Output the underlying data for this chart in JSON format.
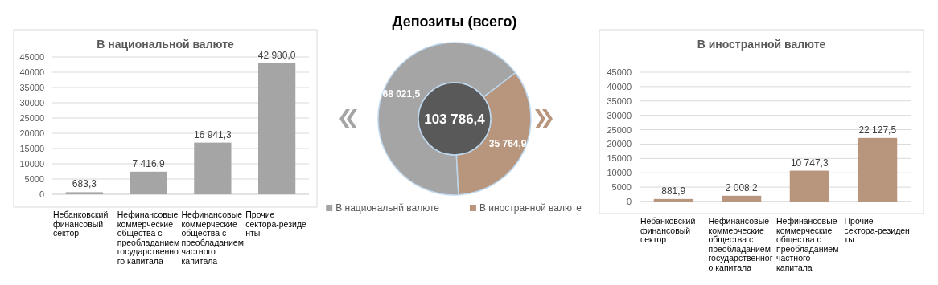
{
  "chart_data": [
    {
      "type": "bar",
      "title": "В национальной валюте",
      "categories": [
        "Небанковский финансовый сектор",
        "Нефинансовые коммерческие общества с преобладанием государственного капитала",
        "Нефинансовые коммерческие общества с преобладанием частного капитала",
        "Прочие сектора-резиденты"
      ],
      "values": [
        683.3,
        7416.9,
        16941.3,
        42980.0
      ],
      "value_labels": [
        "683,3",
        "7 416,9",
        "16 941,3",
        "42 980,0"
      ],
      "color": "#a5a5a5",
      "ylim": [
        0,
        45000
      ],
      "yticks": [
        0,
        5000,
        10000,
        15000,
        20000,
        25000,
        30000,
        35000,
        40000,
        45000
      ],
      "grid": "y"
    },
    {
      "type": "donut",
      "title": "Депозиты (всего)",
      "categories": [
        "В национальнй валюте",
        "В иностранной валюте"
      ],
      "values": [
        68021.5,
        35764.9
      ],
      "value_labels": [
        "68 021,5",
        "35 764,9"
      ],
      "colors": [
        "#a5a5a5",
        "#b8967e"
      ],
      "annotations": [
        "103 786,4"
      ],
      "legend": "bottom"
    },
    {
      "type": "bar",
      "title": "В иностранной валюте",
      "categories": [
        "Небанковский финансовый сектор",
        "Нефинансовые коммерческие общества с преобладанием государственного капитала",
        "Нефинансовые коммерческие общества с преобладанием частного капитала",
        "Прочие сектора-резиденты"
      ],
      "values": [
        881.9,
        2008.2,
        10747.3,
        22127.5
      ],
      "value_labels": [
        "881,9",
        "2 008,2",
        "10 747,3",
        "22 127,5"
      ],
      "color": "#b8967e",
      "ylim": [
        0,
        45000
      ],
      "yticks": [
        0,
        5000,
        10000,
        15000,
        20000,
        25000,
        30000,
        35000,
        40000,
        45000
      ],
      "grid": "y"
    }
  ]
}
